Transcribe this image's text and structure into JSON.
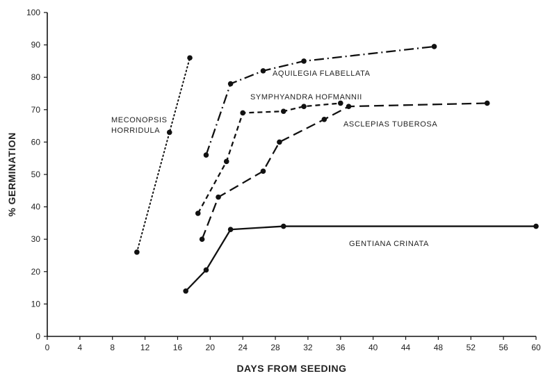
{
  "chart_data": {
    "type": "line",
    "xlabel": "DAYS FROM SEEDING",
    "ylabel": "% GERMINATION",
    "xlim": [
      0,
      60
    ],
    "ylim": [
      0,
      100
    ],
    "xticks": [
      0,
      4,
      8,
      12,
      16,
      20,
      24,
      28,
      32,
      36,
      40,
      44,
      48,
      52,
      56,
      60
    ],
    "yticks": [
      0,
      10,
      20,
      30,
      40,
      50,
      60,
      70,
      80,
      90,
      100
    ],
    "grid": false,
    "series": [
      {
        "name": "MECONOPSIS HORRIDULA",
        "label_lines": [
          "MECONOPSIS",
          "HORRIDULA"
        ],
        "style": "dotted",
        "x": [
          11,
          15,
          17.5
        ],
        "y": [
          26,
          63,
          86
        ]
      },
      {
        "name": "AQUILEGIA FLABELLATA",
        "label_lines": [
          "AQUILEGIA FLABELLATA"
        ],
        "style": "dash-dot",
        "x": [
          19.5,
          22.5,
          26.5,
          31.5,
          47.5
        ],
        "y": [
          56,
          78,
          82,
          85,
          89.5
        ]
      },
      {
        "name": "SYMPHYANDRA HOFMANNII",
        "label_lines": [
          "SYMPHYANDRA HOFMANNII"
        ],
        "style": "short-dash",
        "x": [
          18.5,
          22,
          24,
          29,
          31.5,
          36
        ],
        "y": [
          38,
          54,
          69,
          69.5,
          71,
          72
        ]
      },
      {
        "name": "ASCLEPIAS TUBEROSA",
        "label_lines": [
          "ASCLEPIAS TUBEROSA"
        ],
        "style": "long-dash",
        "x": [
          19,
          21,
          26.5,
          28.5,
          34,
          37,
          54
        ],
        "y": [
          30,
          43,
          51,
          60,
          67,
          71,
          72
        ]
      },
      {
        "name": "GENTIANA CRINATA",
        "label_lines": [
          "GENTIANA CRINATA"
        ],
        "style": "solid",
        "x": [
          17,
          19.5,
          22.5,
          29,
          60
        ],
        "y": [
          14,
          20.5,
          33,
          34,
          34
        ]
      }
    ]
  }
}
